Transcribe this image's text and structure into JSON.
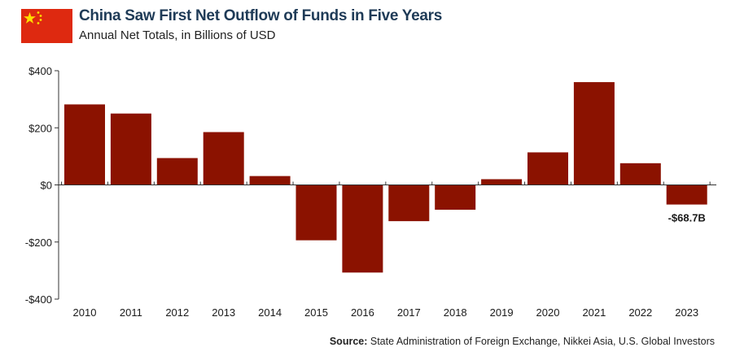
{
  "header": {
    "title": "China Saw First Net Outflow of Funds in Five Years",
    "subtitle": "Annual Net Totals, in Billions of USD",
    "flag_icon": "china-flag-icon"
  },
  "source": {
    "label": "Source:",
    "text": "State Administration of Foreign Exchange, Nikkei Asia, U.S. Global Investors"
  },
  "colors": {
    "bar": "#8b1200",
    "axis": "#333333",
    "flag_red": "#de2910",
    "flag_star": "#ffde00"
  },
  "chart_data": {
    "type": "bar",
    "title": "China Saw First Net Outflow of Funds in Five Years",
    "subtitle": "Annual Net Totals, in Billions of USD",
    "categories": [
      "2010",
      "2011",
      "2012",
      "2013",
      "2014",
      "2015",
      "2016",
      "2017",
      "2018",
      "2019",
      "2020",
      "2021",
      "2022",
      "2023"
    ],
    "values": [
      282,
      250,
      94,
      185,
      31,
      -194,
      -307,
      -127,
      -87,
      20,
      114,
      360,
      76,
      -68.7
    ],
    "ylim": [
      -400,
      400
    ],
    "yticks": [
      400,
      200,
      0,
      -200,
      -400
    ],
    "ytick_labels": [
      "$400",
      "$200",
      "$0",
      "-$200",
      "-$400"
    ],
    "annotations": [
      {
        "category": "2023",
        "text": "-$68.7B"
      }
    ],
    "grid": false
  }
}
